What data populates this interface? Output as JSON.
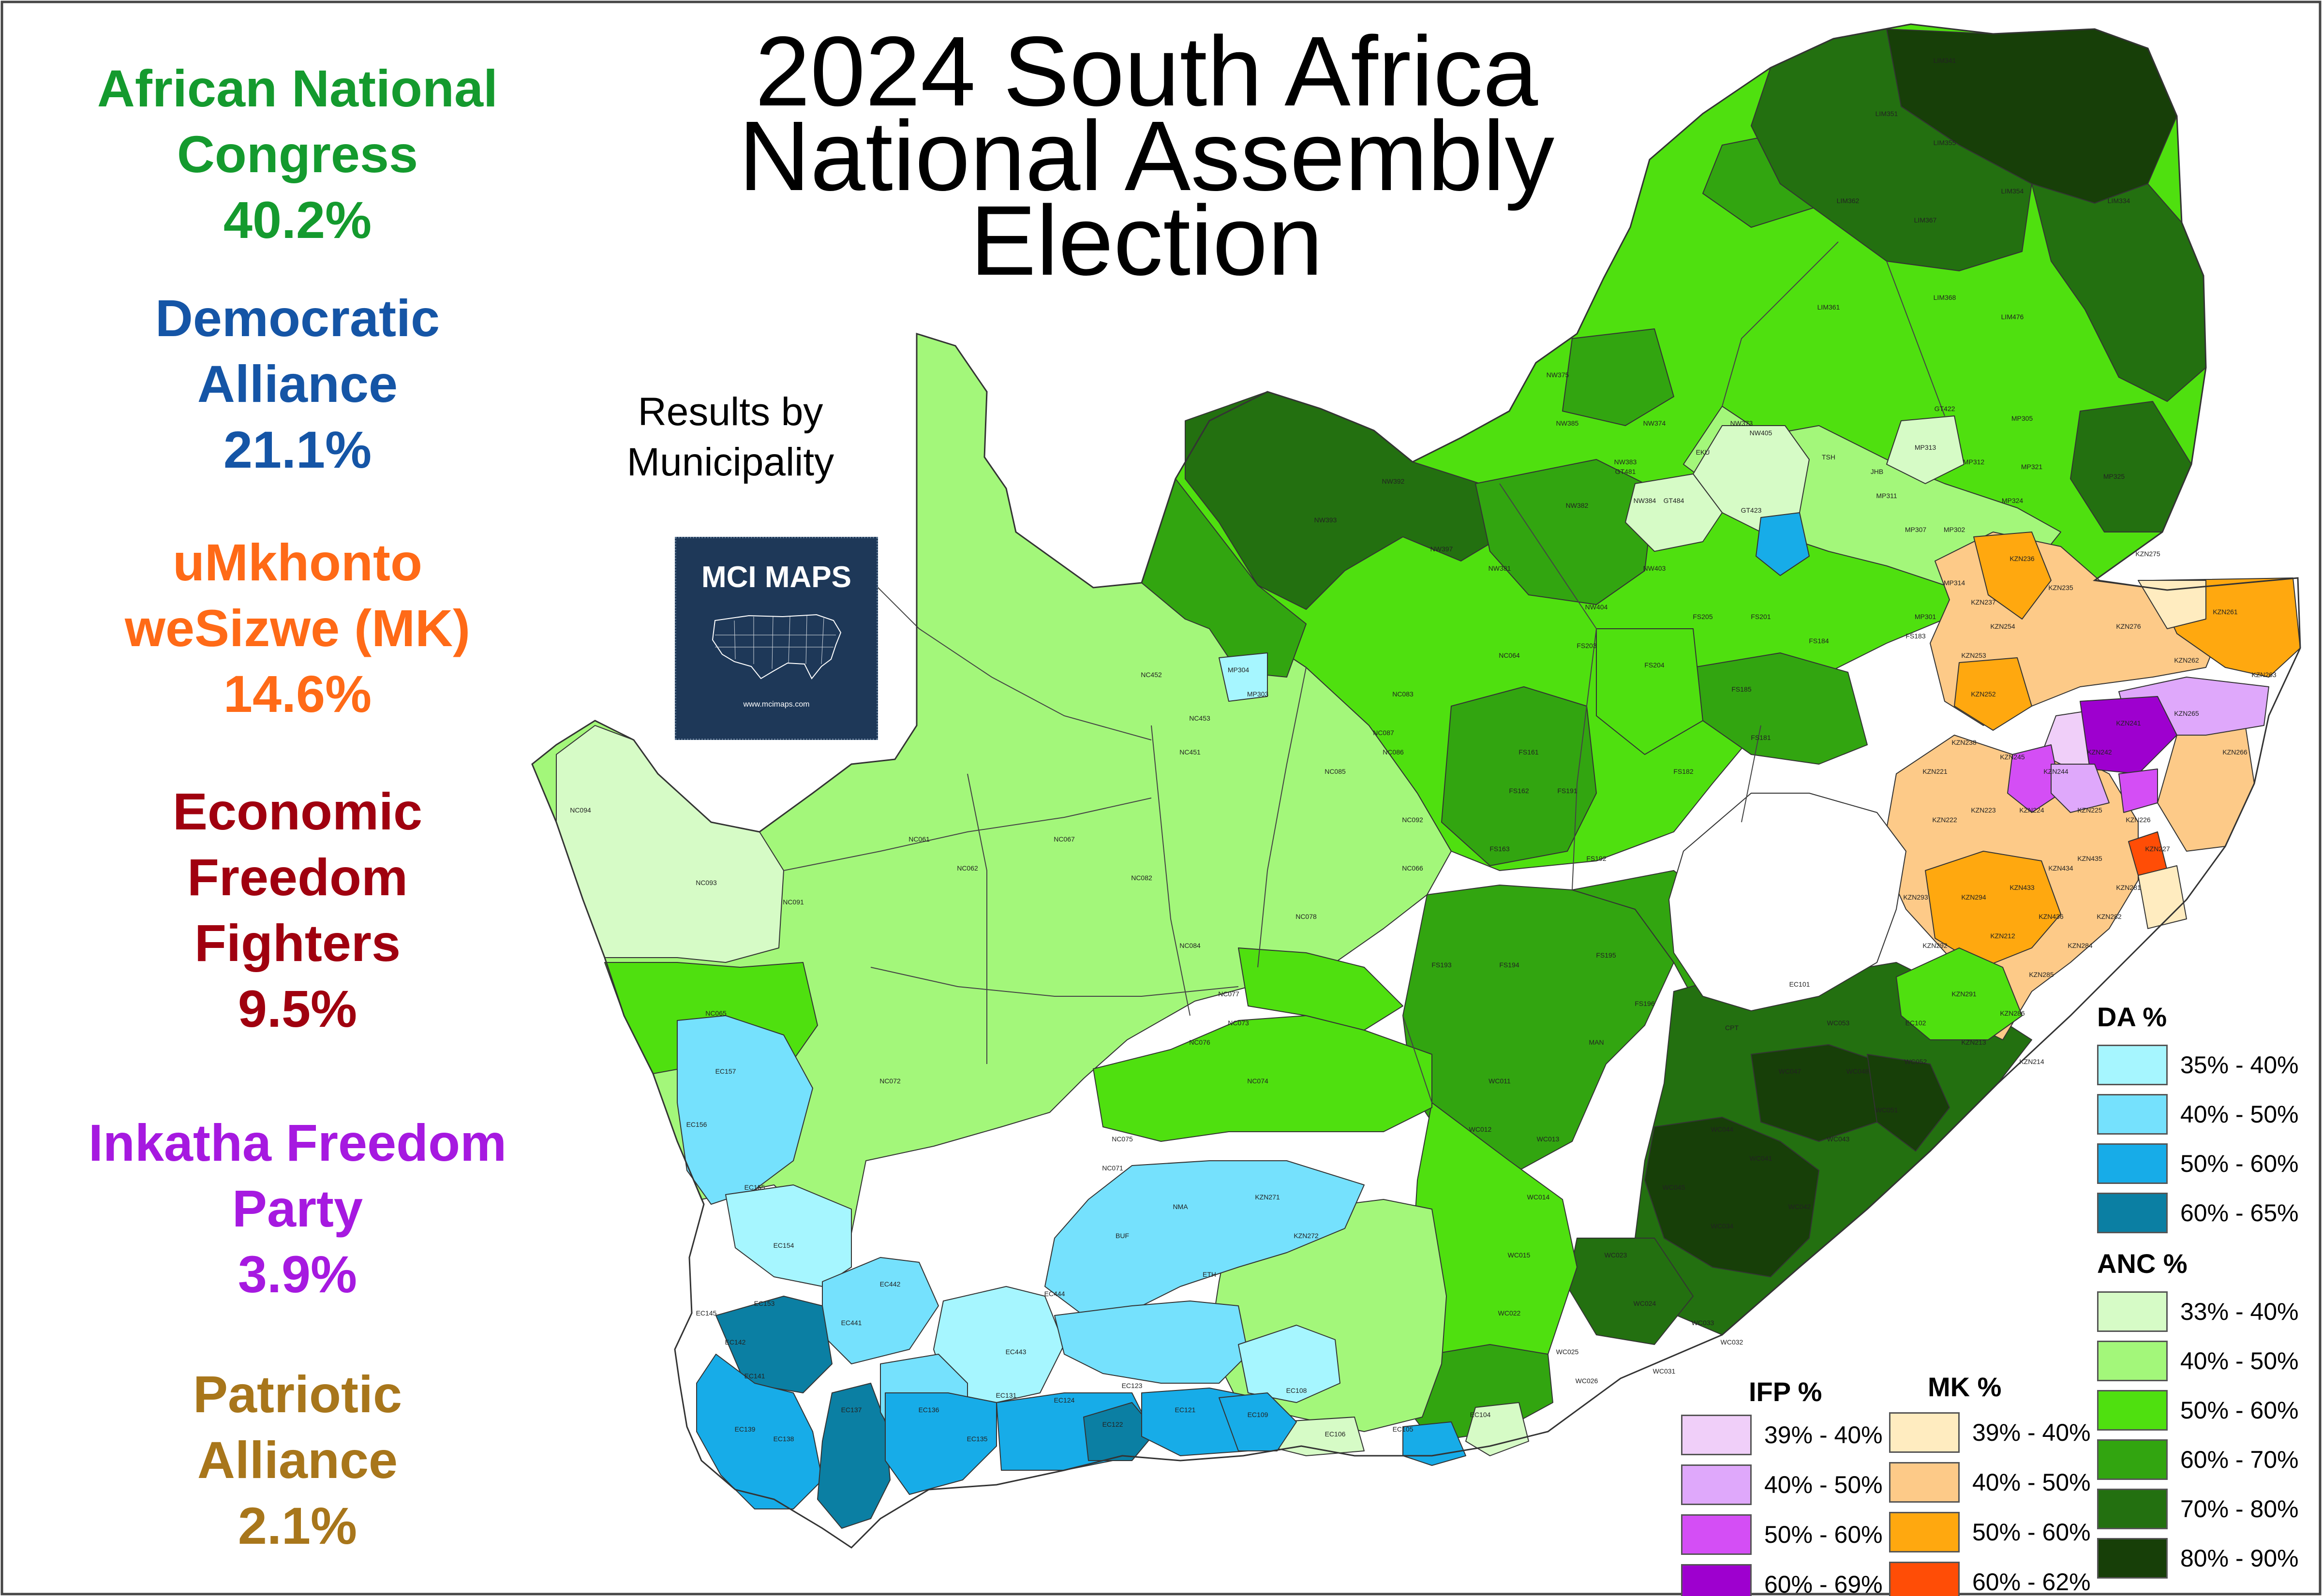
{
  "title": {
    "line1": "2024 South Africa",
    "line2": "National Assembly",
    "line3": "Election"
  },
  "subtitle": {
    "line1": "Results by",
    "line2": "Municipality"
  },
  "logo": {
    "text": "MCI MAPS",
    "url": "www.mcimaps.com"
  },
  "parties": [
    {
      "lines": [
        "African National",
        "Congress"
      ],
      "pct": "40.2%",
      "color": "#149a2e"
    },
    {
      "lines": [
        "Democratic",
        "Alliance"
      ],
      "pct": "21.1%",
      "color": "#1555a6"
    },
    {
      "lines": [
        "uMkhonto",
        "weSizwe (MK)"
      ],
      "pct": "14.6%",
      "color": "#ff6a17"
    },
    {
      "lines": [
        "Economic",
        "Freedom",
        "Fighters"
      ],
      "pct": "9.5%",
      "color": "#a0000f"
    },
    {
      "lines": [
        "Inkatha Freedom",
        "Party"
      ],
      "pct": "3.9%",
      "color": "#a619e0"
    },
    {
      "lines": [
        "Patriotic",
        "Alliance"
      ],
      "pct": "2.1%",
      "color": "#a8761b"
    }
  ],
  "legend": {
    "da": {
      "title": "DA  %",
      "items": [
        {
          "label": "35% - 40%",
          "color": "#a6f6ff"
        },
        {
          "label": "40% - 50%",
          "color": "#75e1fd"
        },
        {
          "label": "50% - 60%",
          "color": "#17ace8"
        },
        {
          "label": "60% - 65%",
          "color": "#0b7fa3"
        }
      ]
    },
    "anc": {
      "title": "ANC  %",
      "items": [
        {
          "label": "33% - 40%",
          "color": "#d6fbc6"
        },
        {
          "label": "40% - 50%",
          "color": "#a3f77a"
        },
        {
          "label": "50% - 60%",
          "color": "#4fe00f"
        },
        {
          "label": "60% - 70%",
          "color": "#32a510"
        },
        {
          "label": "70% - 80%",
          "color": "#237010"
        },
        {
          "label": "80% - 90%",
          "color": "#173f08"
        }
      ]
    },
    "ifp": {
      "title": "IFP  %",
      "items": [
        {
          "label": "39% - 40%",
          "color": "#f0cff9"
        },
        {
          "label": "40% - 50%",
          "color": "#dfa8fb"
        },
        {
          "label": "50% - 60%",
          "color": "#d44ef5"
        },
        {
          "label": "60% - 69%",
          "color": "#9e00cf"
        }
      ]
    },
    "mk": {
      "title": "MK  %",
      "items": [
        {
          "label": "39% - 40%",
          "color": "#ffecc0"
        },
        {
          "label": "40% - 50%",
          "color": "#fdca88"
        },
        {
          "label": "50% - 60%",
          "color": "#ffa80f"
        },
        {
          "label": "60% - 62%",
          "color": "#ff4d06"
        }
      ]
    }
  },
  "map_labels": [
    "LIM341",
    "LIM351",
    "LIM355",
    "LIM362",
    "LIM367",
    "LIM354",
    "LIM334",
    "LIM361",
    "LIM368",
    "LIM476",
    "NW375",
    "NW385",
    "NW374",
    "NW373",
    "NW383",
    "NW384",
    "NW382",
    "NW392",
    "NW393",
    "NW397",
    "NW381",
    "NW403",
    "NW404",
    "NW405",
    "TSH",
    "JHB",
    "EKU",
    "GT481",
    "GT484",
    "GT423",
    "GT422",
    "MP313",
    "MP312",
    "MP311",
    "MP307",
    "MP302",
    "MP305",
    "MP321",
    "MP324",
    "MP325",
    "MP314",
    "MP301",
    "MP304",
    "MP303",
    "NC453",
    "NC452",
    "NC451",
    "NC087",
    "NC083",
    "NC086",
    "NC085",
    "NC092",
    "NC094",
    "NC093",
    "NC091",
    "NC061",
    "NC062",
    "NC067",
    "NC082",
    "NC084",
    "NC078",
    "NC077",
    "NC076",
    "NC075",
    "NC074",
    "NC073",
    "NC071",
    "NC072",
    "NC065",
    "NC066",
    "NC064",
    "FS203",
    "FS204",
    "FS205",
    "FS201",
    "FS184",
    "FS183",
    "FS182",
    "FS181",
    "FS185",
    "FS161",
    "FS162",
    "FS163",
    "FS191",
    "FS192",
    "FS193",
    "FS194",
    "FS195",
    "FS196",
    "MAN",
    "WC011",
    "WC012",
    "WC013",
    "WC014",
    "WC015",
    "WC022",
    "WC023",
    "WC024",
    "WC025",
    "WC026",
    "WC031",
    "WC032",
    "WC033",
    "WC034",
    "WC041",
    "WC042",
    "WC043",
    "WC044",
    "WC045",
    "WC047",
    "WC048",
    "WC051",
    "WC052",
    "WC053",
    "CPT",
    "EC101",
    "EC102",
    "EC104",
    "EC105",
    "EC106",
    "EC108",
    "EC109",
    "EC121",
    "EC122",
    "EC123",
    "EC124",
    "EC131",
    "EC135",
    "EC136",
    "EC137",
    "EC138",
    "EC139",
    "EC141",
    "EC142",
    "EC145",
    "EC153",
    "EC154",
    "EC155",
    "EC156",
    "EC157",
    "EC441",
    "EC442",
    "EC443",
    "EC444",
    "BUF",
    "NMA",
    "ETH",
    "KZN271",
    "KZN272",
    "KZN275",
    "KZN276",
    "KZN261",
    "KZN262",
    "KZN263",
    "KZN265",
    "KZN266",
    "KZN241",
    "KZN242",
    "KZN244",
    "KZN245",
    "KZN252",
    "KZN253",
    "KZN254",
    "KZN235",
    "KZN236",
    "KZN237",
    "KZN238",
    "KZN221",
    "KZN222",
    "KZN223",
    "KZN224",
    "KZN225",
    "KZN226",
    "KZN227",
    "KZN281",
    "KZN282",
    "KZN284",
    "KZN285",
    "KZN286",
    "KZN291",
    "KZN292",
    "KZN293",
    "KZN294",
    "KZN433",
    "KZN434",
    "KZN435",
    "KZN436",
    "KZN212",
    "KZN213",
    "KZN214",
    "KZN216"
  ]
}
